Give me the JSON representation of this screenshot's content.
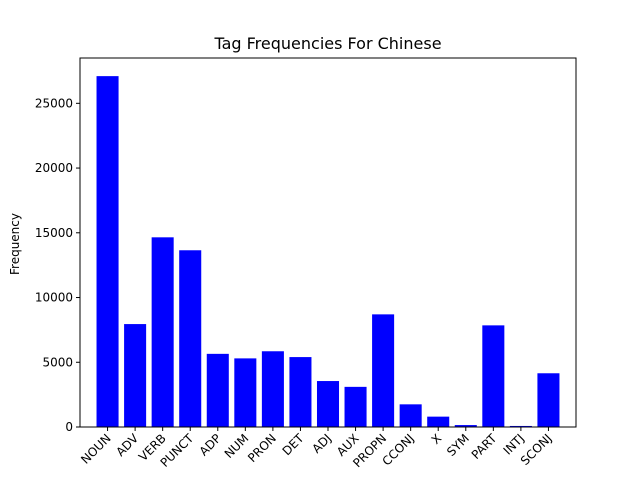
{
  "chart_data": {
    "type": "bar",
    "title": "Tag Frequencies For Chinese",
    "xlabel": "",
    "ylabel": "Frequency",
    "categories": [
      "NOUN",
      "ADV",
      "VERB",
      "PUNCT",
      "ADP",
      "NUM",
      "PRON",
      "DET",
      "ADJ",
      "AUX",
      "PROPN",
      "CCONJ",
      "X",
      "SYM",
      "PART",
      "INTJ",
      "SCONJ"
    ],
    "values": [
      27100,
      7950,
      14650,
      13650,
      5650,
      5300,
      5850,
      5400,
      3550,
      3100,
      8700,
      1750,
      800,
      150,
      7850,
      80,
      4150
    ],
    "ylim": [
      0,
      28500
    ],
    "yticks": [
      0,
      5000,
      10000,
      15000,
      20000,
      25000
    ],
    "bar_color": "#0000ff",
    "grid": false,
    "legend": "none"
  }
}
